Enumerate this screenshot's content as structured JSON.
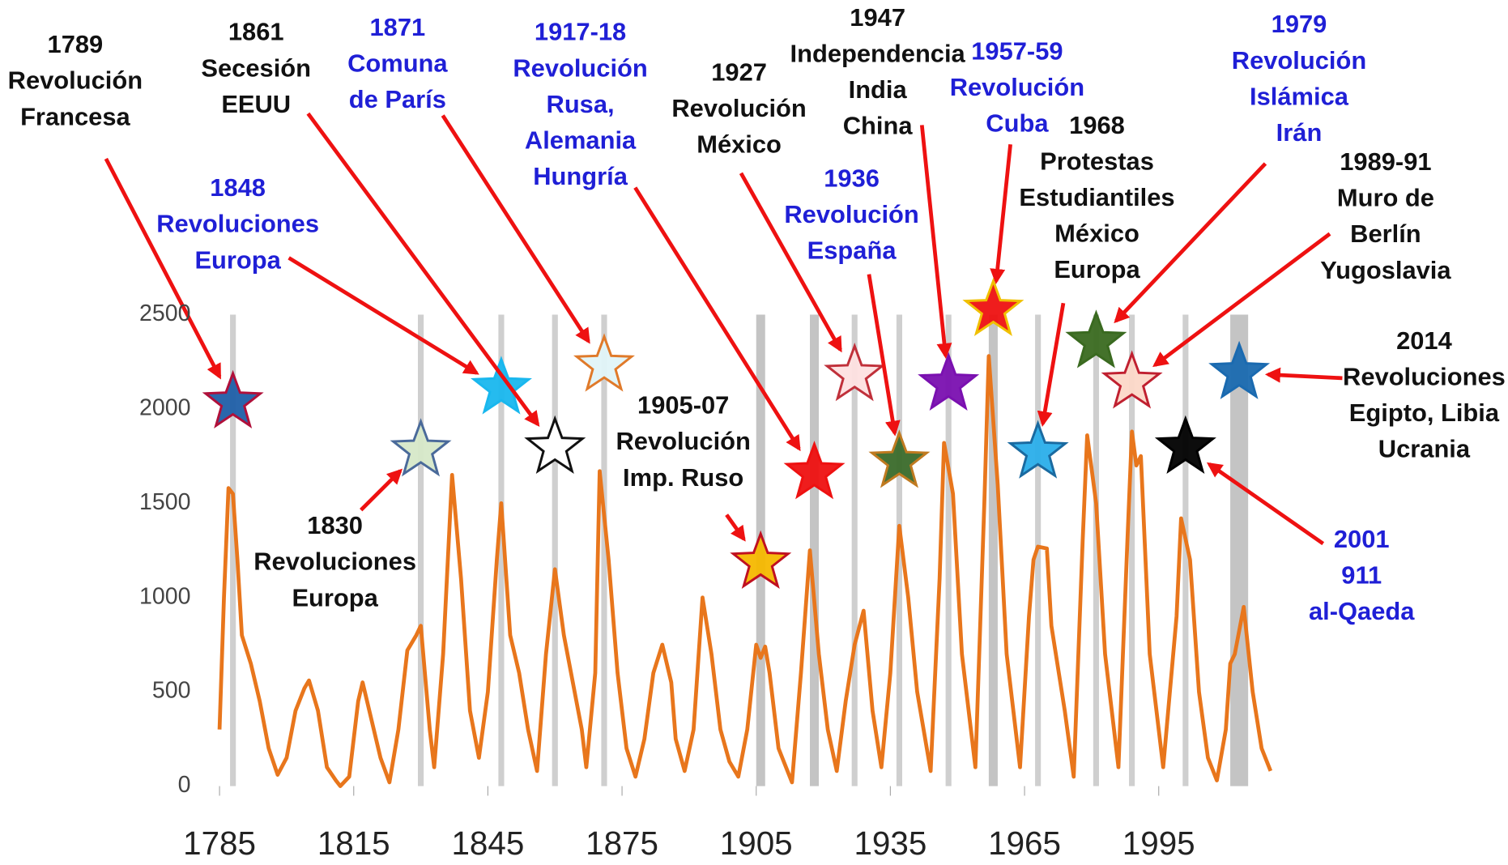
{
  "chart_data": {
    "type": "line",
    "color": "#e8761c",
    "x": [
      1785,
      1786,
      1787,
      1788,
      1789,
      1790,
      1792,
      1794,
      1796,
      1798,
      1800,
      1802,
      1804,
      1805,
      1807,
      1809,
      1811,
      1812,
      1814,
      1816,
      1817,
      1819,
      1821,
      1823,
      1825,
      1827,
      1829,
      1830,
      1832,
      1833,
      1835,
      1837,
      1839,
      1841,
      1843,
      1845,
      1847,
      1848,
      1850,
      1852,
      1854,
      1856,
      1858,
      1860,
      1862,
      1864,
      1866,
      1867,
      1869,
      1870,
      1872,
      1874,
      1876,
      1878,
      1880,
      1882,
      1884,
      1886,
      1887,
      1889,
      1891,
      1893,
      1895,
      1897,
      1899,
      1901,
      1903,
      1905,
      1906,
      1907,
      1908,
      1910,
      1913,
      1915,
      1917,
      1919,
      1921,
      1923,
      1925,
      1927,
      1929,
      1931,
      1933,
      1935,
      1937,
      1939,
      1941,
      1944,
      1946,
      1947,
      1949,
      1951,
      1954,
      1956,
      1957,
      1959,
      1961,
      1964,
      1966,
      1967,
      1968,
      1970,
      1971,
      1974,
      1976,
      1978,
      1979,
      1981,
      1983,
      1986,
      1988,
      1989,
      1990,
      1991,
      1993,
      1996,
      1999,
      2000,
      2002,
      2004,
      2006,
      2008,
      2010,
      2011,
      2012,
      2014,
      2016,
      2018,
      2020
    ],
    "values": [
      300,
      1000,
      1580,
      1550,
      1200,
      800,
      650,
      450,
      200,
      60,
      150,
      400,
      520,
      560,
      400,
      100,
      30,
      0,
      50,
      450,
      550,
      350,
      150,
      20,
      300,
      720,
      800,
      850,
      300,
      100,
      700,
      1650,
      1100,
      400,
      150,
      500,
      1200,
      1500,
      800,
      600,
      300,
      80,
      700,
      1150,
      800,
      550,
      300,
      100,
      600,
      1670,
      1200,
      600,
      200,
      50,
      250,
      600,
      750,
      550,
      250,
      80,
      300,
      1000,
      700,
      300,
      130,
      50,
      300,
      750,
      680,
      740,
      600,
      200,
      20,
      600,
      1250,
      700,
      300,
      80,
      450,
      750,
      930,
      400,
      100,
      600,
      1380,
      1000,
      500,
      80,
      1100,
      1820,
      1550,
      700,
      100,
      1500,
      2280,
      1600,
      700,
      100,
      900,
      1200,
      1270,
      1260,
      850,
      400,
      50,
      1300,
      1860,
      1500,
      700,
      100,
      1300,
      1880,
      1700,
      1750,
      700,
      100,
      900,
      1420,
      1200,
      500,
      150,
      30,
      300,
      650,
      700,
      950,
      500,
      200,
      80
    ],
    "xlim": [
      1785,
      2021
    ],
    "ylim": [
      0,
      2500
    ],
    "xticks": [
      1785,
      1815,
      1845,
      1875,
      1905,
      1935,
      1965,
      1995
    ],
    "yticks": [
      0,
      500,
      1000,
      1500,
      2000,
      2500
    ],
    "markers": [
      {
        "x": 1788,
        "y": 2035,
        "color": "#1f5fa8",
        "stroke": "#b0103a"
      },
      {
        "x": 1830,
        "y": 1780,
        "color": "#d6e8c8",
        "stroke": "#4a6a9a"
      },
      {
        "x": 1848,
        "y": 2110,
        "color": "#19b7ee",
        "stroke": "#19b7ee"
      },
      {
        "x": 1860,
        "y": 1795,
        "color": "#ffffff",
        "stroke": "#111111"
      },
      {
        "x": 1871,
        "y": 2230,
        "color": "#e0f4f8",
        "stroke": "#e07a2a"
      },
      {
        "x": 1905,
        "x_end": 1907,
        "y": 1185,
        "color": "#f5b800",
        "stroke": "#c01020"
      },
      {
        "x": 1917,
        "x_end": 1919,
        "y": 1660,
        "color": "#ee1111",
        "stroke": "#ee1111"
      },
      {
        "x": 1927,
        "y": 2180,
        "color": "#fde0e0",
        "stroke": "#c0303a"
      },
      {
        "x": 1937,
        "y": 1720,
        "color": "#3a6a2a",
        "stroke": "#c07a20"
      },
      {
        "x": 1948,
        "y": 2130,
        "color": "#7a10b0",
        "stroke": "#7a10b0"
      },
      {
        "x": 1957,
        "x_end": 1959,
        "y": 2525,
        "color": "#ee1111",
        "stroke": "#f0c000"
      },
      {
        "x": 1968,
        "y": 1770,
        "color": "#2aaeea",
        "stroke": "#1a6aa0"
      },
      {
        "x": 1981,
        "y": 2355,
        "color": "#3a6a20",
        "stroke": "#3a6a20"
      },
      {
        "x": 1989,
        "y": 2140,
        "color": "#fcd8c8",
        "stroke": "#c02030"
      },
      {
        "x": 2001,
        "y": 1795,
        "color": "#000000",
        "stroke": "#000000"
      },
      {
        "x": 2011,
        "x_end": 2015,
        "y": 2190,
        "color": "#1a6ab0",
        "stroke": "#1a6ab0"
      }
    ],
    "annotations": [
      {
        "lines": [
          "1789",
          "Revolución",
          "Francesa"
        ],
        "color": "#111111"
      },
      {
        "lines": [
          "1848",
          "Revoluciones",
          "Europa"
        ],
        "color": "#1f1fd6"
      },
      {
        "lines": [
          "1861",
          "Secesión",
          "EEUU"
        ],
        "color": "#111111"
      },
      {
        "lines": [
          "1871",
          "Comuna",
          "de París"
        ],
        "color": "#1f1fd6"
      },
      {
        "lines": [
          "1917-18",
          "Revolución",
          "Rusa,",
          "Alemania",
          "Hungría"
        ],
        "color": "#1f1fd6"
      },
      {
        "lines": [
          "1927",
          "Revolución",
          "México"
        ],
        "color": "#111111"
      },
      {
        "lines": [
          "1947",
          "Independencia",
          "India",
          "China"
        ],
        "color": "#111111"
      },
      {
        "lines": [
          "1957-59",
          "Revolución",
          "Cuba"
        ],
        "color": "#1f1fd6"
      },
      {
        "lines": [
          "1936",
          "Revolución",
          "España"
        ],
        "color": "#1f1fd6"
      },
      {
        "lines": [
          "1968",
          "Protestas",
          "Estudiantiles",
          "México",
          "Europa"
        ],
        "color": "#111111"
      },
      {
        "lines": [
          "1979",
          "Revolución",
          "Islámica",
          "Irán"
        ],
        "color": "#1f1fd6"
      },
      {
        "lines": [
          "1989-91",
          "Muro de",
          "Berlín",
          "Yugoslavia"
        ],
        "color": "#111111"
      },
      {
        "lines": [
          "2014",
          "Revoluciones",
          "Egipto, Libia",
          "Ucrania"
        ],
        "color": "#111111"
      },
      {
        "lines": [
          "2001",
          "911",
          "al-Qaeda"
        ],
        "color": "#1f1fd6"
      },
      {
        "lines": [
          "1905-07",
          "Revolución",
          "Imp. Ruso"
        ],
        "color": "#111111"
      },
      {
        "lines": [
          "1830",
          "Revoluciones",
          "Europa"
        ],
        "color": "#111111"
      }
    ]
  }
}
